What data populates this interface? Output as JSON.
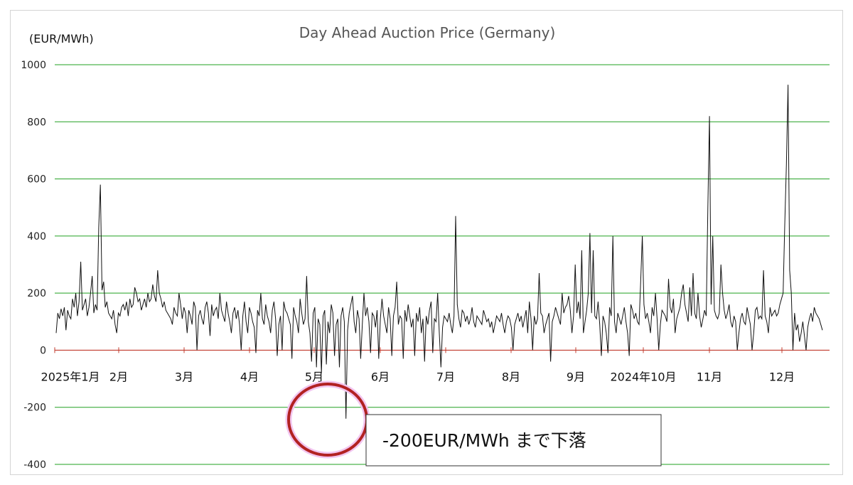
{
  "chart_data": {
    "type": "line",
    "title": "Day Ahead Auction Price (Germany)",
    "ylabel": "(EUR/MWh)",
    "ylim": [
      -400,
      1000
    ],
    "yticks": [
      1000,
      800,
      600,
      400,
      200,
      0,
      -200,
      -400
    ],
    "grid": true,
    "colors": {
      "gridline": "#22a022",
      "zero_line": "#c0392b",
      "series": "#111111",
      "highlight": "#b22222"
    },
    "x_labels": [
      "2025年1月",
      "2月",
      "3月",
      "4月",
      "5月",
      "6月",
      "7月",
      "8月",
      "9月",
      "2024年10月",
      "11月",
      "12月"
    ],
    "series": [
      {
        "values": [
          60,
          130,
          110,
          145,
          120,
          150,
          70,
          140,
          120,
          110,
          180,
          150,
          200,
          120,
          170,
          310,
          140,
          160,
          180,
          120,
          150,
          200,
          260,
          130,
          160,
          140,
          430,
          580,
          210,
          240,
          150,
          170,
          130,
          120,
          110,
          140,
          90,
          60,
          130,
          120,
          150,
          160,
          140,
          170,
          120,
          180,
          150,
          160,
          220,
          200,
          170,
          180,
          140,
          160,
          180,
          150,
          200,
          170,
          180,
          230,
          190,
          170,
          280,
          200,
          180,
          150,
          170,
          140,
          130,
          120,
          110,
          90,
          150,
          130,
          120,
          200,
          160,
          110,
          150,
          130,
          60,
          140,
          120,
          90,
          170,
          150,
          0,
          120,
          140,
          110,
          90,
          150,
          170,
          130,
          50,
          160,
          120,
          140,
          150,
          110,
          200,
          140,
          120,
          100,
          170,
          130,
          100,
          60,
          130,
          150,
          110,
          140,
          90,
          0,
          120,
          170,
          100,
          60,
          150,
          130,
          100,
          80,
          -10,
          140,
          120,
          200,
          110,
          90,
          160,
          120,
          100,
          60,
          140,
          170,
          110,
          -20,
          90,
          120,
          0,
          170,
          140,
          130,
          110,
          90,
          -30,
          150,
          120,
          100,
          60,
          180,
          130,
          90,
          110,
          260,
          100,
          60,
          -40,
          130,
          150,
          -60,
          110,
          90,
          -80,
          120,
          140,
          -50,
          100,
          60,
          160,
          130,
          -20,
          90,
          110,
          -60,
          120,
          150,
          100,
          -240,
          70,
          130,
          160,
          190,
          100,
          60,
          140,
          110,
          -30,
          90,
          200,
          120,
          150,
          100,
          -10,
          130,
          120,
          80,
          140,
          -30,
          110,
          180,
          120,
          90,
          60,
          150,
          110,
          -20,
          120,
          150,
          240,
          90,
          120,
          110,
          -30,
          140,
          100,
          160,
          120,
          80,
          110,
          -20,
          130,
          100,
          150,
          60,
          110,
          -40,
          120,
          90,
          140,
          170,
          -10,
          110,
          100,
          200,
          60,
          -60,
          80,
          120,
          110,
          100,
          130,
          90,
          60,
          120,
          470,
          160,
          110,
          80,
          140,
          130,
          100,
          120,
          90,
          110,
          150,
          100,
          80,
          120,
          110,
          100,
          90,
          140,
          120,
          100,
          110,
          80,
          100,
          60,
          90,
          120,
          110,
          100,
          130,
          90,
          60,
          100,
          120,
          110,
          80,
          0,
          90,
          110,
          130,
          100,
          120,
          80,
          110,
          140,
          60,
          170,
          110,
          0,
          120,
          90,
          110,
          270,
          130,
          120,
          60,
          90,
          110,
          130,
          -40,
          100,
          120,
          150,
          130,
          110,
          90,
          200,
          130,
          150,
          160,
          190,
          140,
          60,
          120,
          300,
          130,
          170,
          110,
          350,
          60,
          100,
          140,
          200,
          410,
          130,
          350,
          120,
          110,
          170,
          90,
          -20,
          120,
          100,
          60,
          -10,
          150,
          120,
          400,
          100,
          60,
          130,
          110,
          90,
          120,
          150,
          100,
          60,
          -20,
          160,
          140,
          110,
          130,
          100,
          90,
          240,
          400,
          160,
          110,
          130,
          100,
          60,
          150,
          120,
          200,
          110,
          0,
          90,
          140,
          130,
          120,
          100,
          250,
          150,
          130,
          180,
          60,
          110,
          130,
          150,
          200,
          230,
          160,
          130,
          100,
          220,
          120,
          270,
          130,
          110,
          200,
          120,
          80,
          110,
          140,
          120,
          500,
          820,
          160,
          400,
          140,
          120,
          110,
          130,
          300,
          200,
          140,
          110,
          130,
          160,
          100,
          80,
          120,
          100,
          0,
          60,
          110,
          130,
          100,
          90,
          150,
          120,
          90,
          0,
          60,
          140,
          150,
          110,
          120,
          110,
          280,
          120,
          100,
          60,
          150,
          120,
          130,
          140,
          120,
          130,
          160,
          180,
          200,
          440,
          650,
          930,
          280,
          200,
          0,
          130,
          70,
          90,
          30,
          60,
          100,
          50,
          0,
          80,
          110,
          130,
          100,
          150,
          130,
          120,
          110,
          90,
          70
        ]
      }
    ],
    "annotation": {
      "text": "-200EUR/MWh まで下落"
    }
  }
}
